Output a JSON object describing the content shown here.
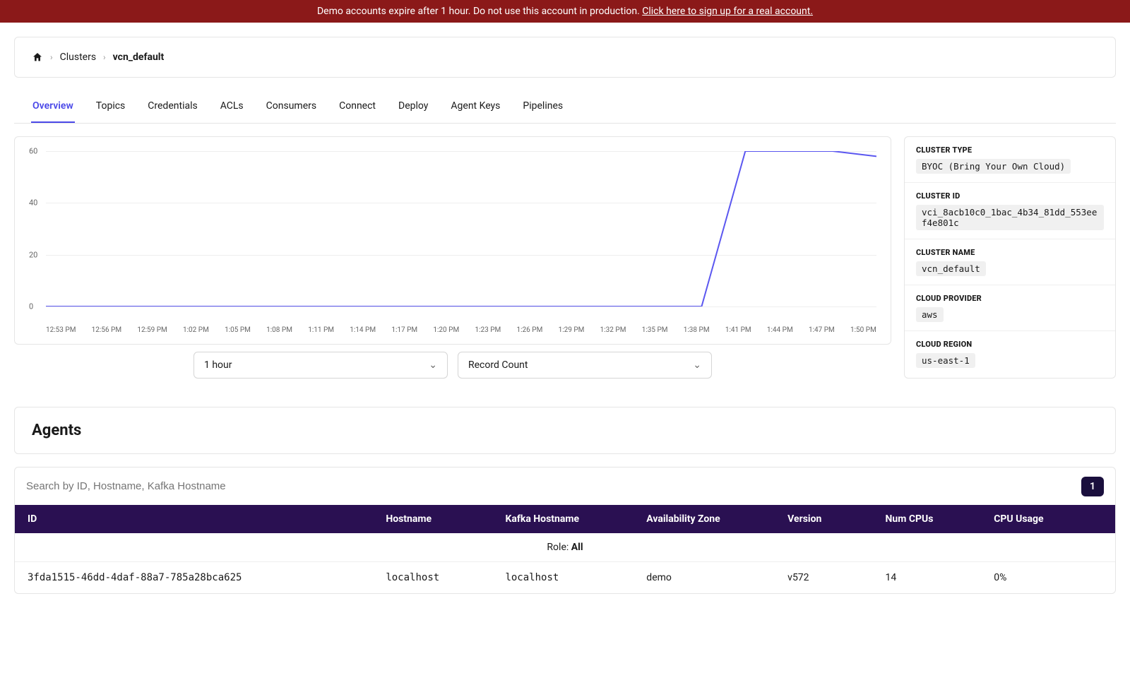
{
  "banner": {
    "text": "Demo accounts expire after 1 hour. Do not use this account in production. ",
    "link_text": "Click here to sign up for a real account."
  },
  "breadcrumb": {
    "clusters": "Clusters",
    "current": "vcn_default"
  },
  "tabs": [
    "Overview",
    "Topics",
    "Credentials",
    "ACLs",
    "Consumers",
    "Connect",
    "Deploy",
    "Agent Keys",
    "Pipelines"
  ],
  "active_tab": "Overview",
  "chart": {
    "type": "line",
    "y_ticks": [
      0,
      20,
      40,
      60
    ],
    "y_max": 60,
    "x_labels": [
      "12:53 PM",
      "12:56 PM",
      "12:59 PM",
      "1:02 PM",
      "1:05 PM",
      "1:08 PM",
      "1:11 PM",
      "1:14 PM",
      "1:17 PM",
      "1:20 PM",
      "1:23 PM",
      "1:26 PM",
      "1:29 PM",
      "1:32 PM",
      "1:35 PM",
      "1:38 PM",
      "1:41 PM",
      "1:44 PM",
      "1:47 PM",
      "1:50 PM"
    ],
    "values": [
      0,
      0,
      0,
      0,
      0,
      0,
      0,
      0,
      0,
      0,
      0,
      0,
      0,
      0,
      0,
      0,
      60,
      60,
      60,
      58
    ],
    "line_color": "#5b57f0",
    "line_width": 2,
    "grid_color": "#eeeeee",
    "background_color": "#ffffff"
  },
  "dropdowns": {
    "time_range": "1 hour",
    "metric": "Record Count"
  },
  "cluster_info": [
    {
      "label": "CLUSTER TYPE",
      "value": "BYOC (Bring Your Own Cloud)"
    },
    {
      "label": "CLUSTER ID",
      "value": "vci_8acb10c0_1bac_4b34_81dd_553eef4e801c"
    },
    {
      "label": "CLUSTER NAME",
      "value": "vcn_default"
    },
    {
      "label": "CLOUD PROVIDER",
      "value": "aws"
    },
    {
      "label": "CLOUD REGION",
      "value": "us-east-1"
    }
  ],
  "agents": {
    "title": "Agents",
    "search_placeholder": "Search by ID, Hostname, Kafka Hostname",
    "page": "1",
    "columns": [
      "ID",
      "Hostname",
      "Kafka Hostname",
      "Availability Zone",
      "Version",
      "Num CPUs",
      "CPU Usage"
    ],
    "role_label": "Role: ",
    "role_value": "All",
    "rows": [
      {
        "id": "3fda1515-46dd-4daf-88a7-785a28bca625",
        "hostname": "localhost",
        "kafka_hostname": "localhost",
        "az": "demo",
        "version": "v572",
        "cpus": "14",
        "cpu_usage": "0%"
      }
    ]
  }
}
